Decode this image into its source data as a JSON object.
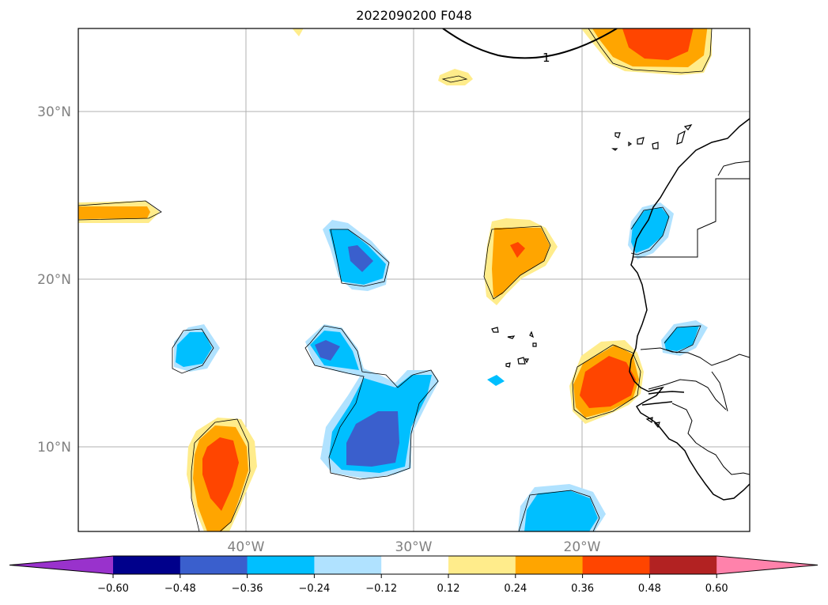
{
  "title": "2022090200 F048",
  "map": {
    "lat_labels": [
      "30°N",
      "20°N",
      "10°N"
    ],
    "lon_labels": [
      "40°W",
      "30°W",
      "20°W"
    ],
    "contour_label": "1",
    "land_color": "none",
    "coastline_color": "#000000",
    "grid_color": "#b0b0b0"
  },
  "colorbar": {
    "ticks": [
      "−0.60",
      "−0.48",
      "−0.36",
      "−0.24",
      "−0.12",
      "0.12",
      "0.24",
      "0.36",
      "0.48",
      "0.60"
    ],
    "colors": [
      "#9932cc",
      "#00008b",
      "#3a5fcd",
      "#00bfff",
      "#b0e2ff",
      "#ffffff",
      "#ffec8b",
      "#ffa500",
      "#ff4500",
      "#b22222",
      "#ff82ab"
    ]
  }
}
